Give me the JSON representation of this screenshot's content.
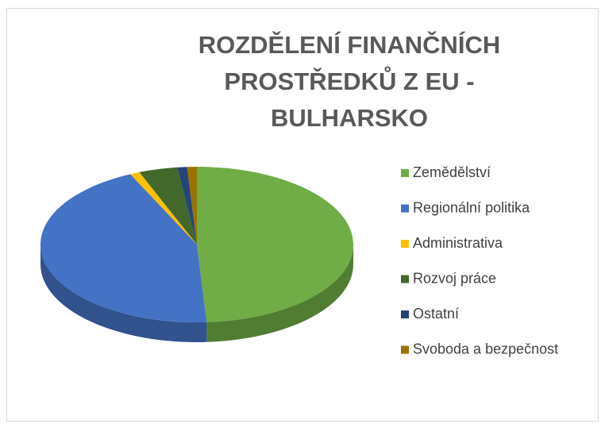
{
  "chart_data": {
    "type": "pie",
    "title": "ROZDĚLENÍ FINANČNÍCH PROSTŘEDKŮ Z EU - BULHARSKO",
    "categories": [
      "Zemědělství",
      "Regionální politika",
      "Administrativa",
      "Rozvoj práce",
      "Ostatní",
      "Svoboda a bezpečnost"
    ],
    "values": [
      49,
      44,
      1,
      4,
      1,
      1
    ],
    "colors": [
      "#70ad47",
      "#4472c4",
      "#ffc000",
      "#43682b",
      "#264478",
      "#997300"
    ],
    "legend": "right"
  }
}
